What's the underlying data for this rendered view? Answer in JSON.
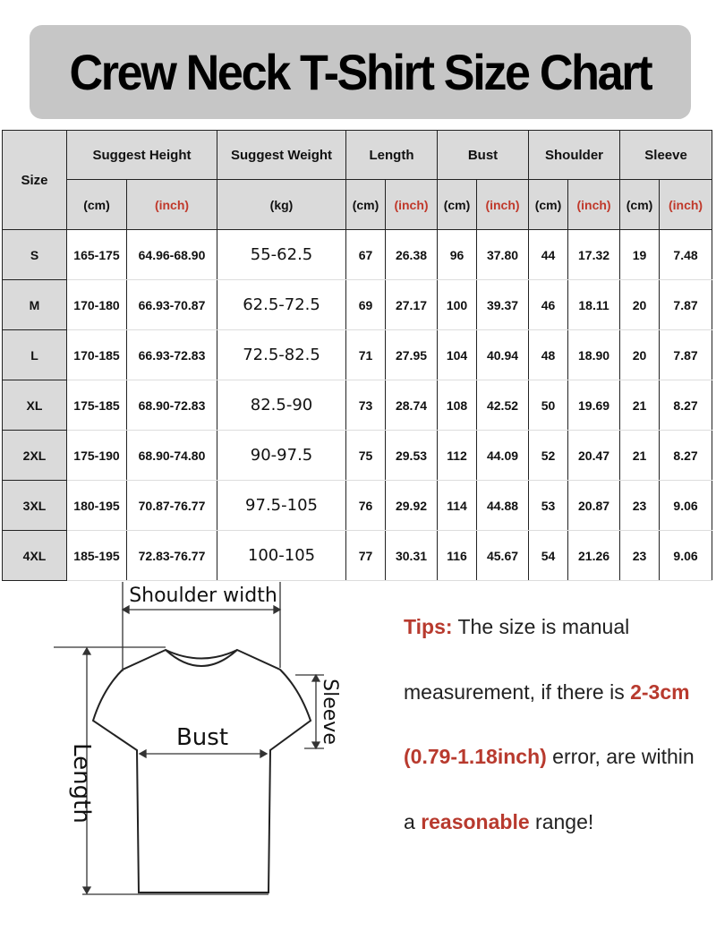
{
  "title": "Crew Neck T-Shirt Size Chart",
  "table": {
    "size_header": "Size",
    "groups": [
      "Suggest Height",
      "Suggest Weight",
      "Length",
      "Bust",
      "Shoulder",
      "Sleeve"
    ],
    "units": [
      "(cm)",
      "(inch)",
      "(kg)",
      "(cm)",
      "(inch)",
      "(cm)",
      "(inch)",
      "(cm)",
      "(inch)",
      "(cm)",
      "(inch)"
    ],
    "rows": [
      [
        "S",
        "165-175",
        "64.96-68.90",
        "55-62.5",
        "67",
        "26.38",
        "96",
        "37.80",
        "44",
        "17.32",
        "19",
        "7.48"
      ],
      [
        "M",
        "170-180",
        "66.93-70.87",
        "62.5-72.5",
        "69",
        "27.17",
        "100",
        "39.37",
        "46",
        "18.11",
        "20",
        "7.87"
      ],
      [
        "L",
        "170-185",
        "66.93-72.83",
        "72.5-82.5",
        "71",
        "27.95",
        "104",
        "40.94",
        "48",
        "18.90",
        "20",
        "7.87"
      ],
      [
        "XL",
        "175-185",
        "68.90-72.83",
        "82.5-90",
        "73",
        "28.74",
        "108",
        "42.52",
        "50",
        "19.69",
        "21",
        "8.27"
      ],
      [
        "2XL",
        "175-190",
        "68.90-74.80",
        "90-97.5",
        "75",
        "29.53",
        "112",
        "44.09",
        "52",
        "20.47",
        "21",
        "8.27"
      ],
      [
        "3XL",
        "180-195",
        "70.87-76.77",
        "97.5-105",
        "76",
        "29.92",
        "114",
        "44.88",
        "53",
        "20.87",
        "23",
        "9.06"
      ],
      [
        "4XL",
        "185-195",
        "72.83-76.77",
        "100-105",
        "77",
        "30.31",
        "116",
        "45.67",
        "54",
        "21.26",
        "23",
        "9.06"
      ]
    ]
  },
  "diagram": {
    "shoulder_label": "Shoulder width",
    "bust_label": "Bust",
    "length_label": "Length",
    "sleeve_label": "Sleeve"
  },
  "tips": {
    "label": "Tips:",
    "text1": " The size is manual measurement, if there is ",
    "range": "2-3cm (0.79-1.18inch)",
    "text2": " error, are within a ",
    "emphasis": "reasonable",
    "text3": " range!"
  },
  "colors": {
    "banner": "#c6c6c6",
    "header_bg": "#dadada",
    "inch_red": "#c0392b"
  }
}
